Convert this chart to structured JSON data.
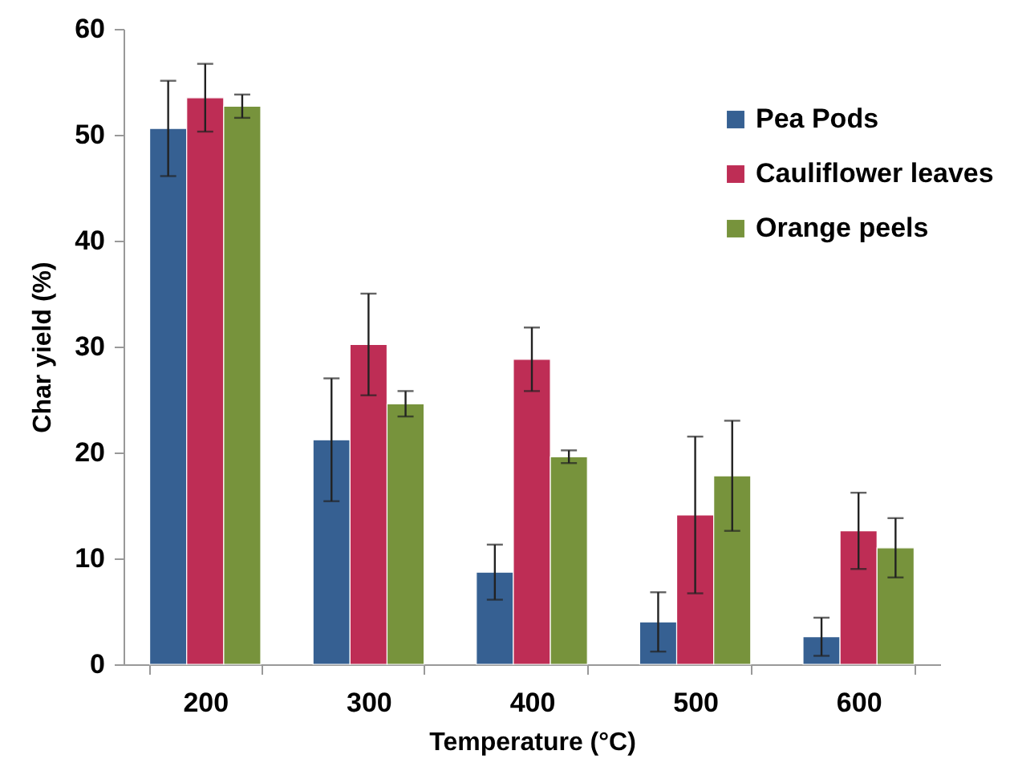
{
  "chart_data": {
    "type": "bar",
    "xlabel": "Temperature (°C)",
    "ylabel": "Char yield (%)",
    "categories": [
      "200",
      "300",
      "400",
      "500",
      "600"
    ],
    "series": [
      {
        "name": "Pea Pods",
        "color": "#366092",
        "values": [
          50.6,
          21.2,
          8.7,
          4.0,
          2.6
        ],
        "errors": [
          4.5,
          5.8,
          2.6,
          2.8,
          1.8
        ]
      },
      {
        "name": "Cauliflower leaves",
        "color": "#be2d55",
        "values": [
          53.5,
          30.2,
          28.8,
          14.1,
          12.6
        ],
        "errors": [
          3.2,
          4.8,
          3.0,
          7.4,
          3.6
        ]
      },
      {
        "name": "Orange peels",
        "color": "#77933c",
        "values": [
          52.7,
          24.6,
          19.6,
          17.8,
          11.0
        ],
        "errors": [
          1.1,
          1.2,
          0.6,
          5.2,
          2.8
        ]
      }
    ],
    "ylim": [
      0,
      60
    ],
    "yticks": [
      0,
      10,
      20,
      30,
      40,
      50,
      60
    ],
    "grid": false,
    "legend": "top right"
  }
}
